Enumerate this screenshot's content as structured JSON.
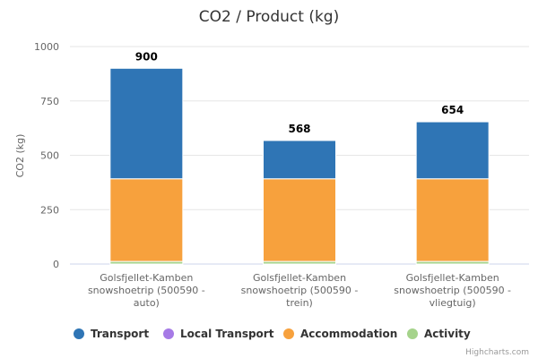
{
  "chart_data": {
    "type": "bar",
    "stacked": true,
    "title": "CO2 / Product (kg)",
    "ylabel": "CO2 (kg)",
    "ylim": [
      0,
      1000
    ],
    "yticks": [
      0,
      250,
      500,
      750,
      1000
    ],
    "grid": true,
    "legend_position": "bottom",
    "categories": [
      [
        "Golsfjellet-Kamben",
        "snowshoetrip (500590 -",
        "auto)"
      ],
      [
        "Golsfjellet-Kamben",
        "snowshoetrip (500590 -",
        "trein)"
      ],
      [
        "Golsfjellet-Kamben",
        "snowshoetrip (500590 -",
        "vliegtuig)"
      ]
    ],
    "totals": [
      900,
      568,
      654
    ],
    "series": [
      {
        "name": "Transport",
        "color": "#2f75b5",
        "values": [
          508,
          176,
          262
        ]
      },
      {
        "name": "Local Transport",
        "color": "#a67ae6",
        "values": [
          0,
          0,
          0
        ]
      },
      {
        "name": "Accommodation",
        "color": "#f7a13d",
        "values": [
          380,
          380,
          380
        ]
      },
      {
        "name": "Activity",
        "color": "#a5d38b",
        "values": [
          12,
          12,
          12
        ]
      }
    ]
  },
  "credits": "Highcharts.com"
}
